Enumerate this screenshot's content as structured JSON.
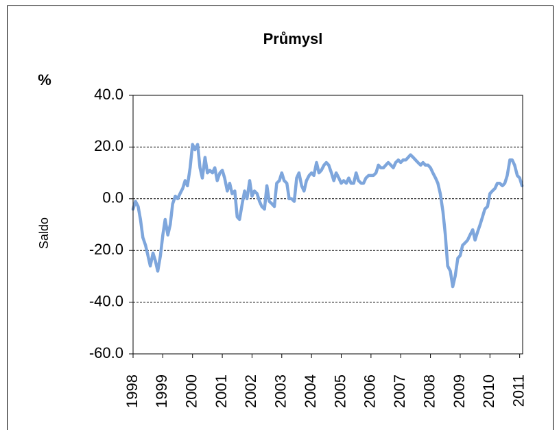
{
  "chart_data": {
    "type": "line",
    "title": "Průmysl",
    "unit_label": "%",
    "ylabel": "Saldo",
    "color": "#7ea6dc",
    "grid": true,
    "xlim": [
      1998,
      2011.1
    ],
    "xticks": [
      1998,
      1999,
      2000,
      2001,
      2002,
      2003,
      2004,
      2005,
      2006,
      2007,
      2008,
      2009,
      2010,
      2011
    ],
    "ylim": [
      -60,
      40
    ],
    "yticks": [
      {
        "value": 40,
        "label": "40.0"
      },
      {
        "value": 20,
        "label": "20.0"
      },
      {
        "value": 0,
        "label": "0.0"
      },
      {
        "value": -20,
        "label": "-20.0"
      },
      {
        "value": -40,
        "label": "-40.0"
      },
      {
        "value": -60,
        "label": "-60.0"
      }
    ],
    "x": [
      1998,
      1998.08,
      1998.17,
      1998.25,
      1998.33,
      1998.42,
      1998.5,
      1998.58,
      1998.67,
      1998.75,
      1998.83,
      1998.92,
      1999,
      1999.08,
      1999.17,
      1999.25,
      1999.33,
      1999.42,
      1999.5,
      1999.58,
      1999.67,
      1999.75,
      1999.83,
      1999.92,
      2000,
      2000.08,
      2000.17,
      2000.25,
      2000.33,
      2000.42,
      2000.5,
      2000.58,
      2000.67,
      2000.75,
      2000.83,
      2000.92,
      2001,
      2001.08,
      2001.17,
      2001.25,
      2001.33,
      2001.42,
      2001.5,
      2001.58,
      2001.67,
      2001.75,
      2001.83,
      2001.92,
      2002,
      2002.08,
      2002.17,
      2002.25,
      2002.33,
      2002.42,
      2002.5,
      2002.58,
      2002.67,
      2002.75,
      2002.83,
      2002.92,
      2003,
      2003.08,
      2003.17,
      2003.25,
      2003.33,
      2003.42,
      2003.5,
      2003.58,
      2003.67,
      2003.75,
      2003.83,
      2003.92,
      2004,
      2004.08,
      2004.17,
      2004.25,
      2004.33,
      2004.42,
      2004.5,
      2004.58,
      2004.67,
      2004.75,
      2004.83,
      2004.92,
      2005,
      2005.08,
      2005.17,
      2005.25,
      2005.33,
      2005.42,
      2005.5,
      2005.58,
      2005.67,
      2005.75,
      2005.83,
      2005.92,
      2006,
      2006.08,
      2006.17,
      2006.25,
      2006.33,
      2006.42,
      2006.5,
      2006.58,
      2006.67,
      2006.75,
      2006.83,
      2006.92,
      2007,
      2007.08,
      2007.17,
      2007.25,
      2007.33,
      2007.42,
      2007.5,
      2007.58,
      2007.67,
      2007.75,
      2007.83,
      2007.92,
      2008,
      2008.08,
      2008.17,
      2008.25,
      2008.33,
      2008.42,
      2008.5,
      2008.58,
      2008.67,
      2008.75,
      2008.83,
      2008.92,
      2009,
      2009.08,
      2009.17,
      2009.25,
      2009.33,
      2009.42,
      2009.5,
      2009.58,
      2009.67,
      2009.75,
      2009.83,
      2009.92,
      2010,
      2010.08,
      2010.17,
      2010.25,
      2010.33,
      2010.42,
      2010.5,
      2010.58,
      2010.67,
      2010.75,
      2010.83,
      2010.92,
      2011,
      2011.08
    ],
    "values": [
      -4,
      -1,
      -3,
      -8,
      -15,
      -18,
      -22,
      -26,
      -21,
      -24,
      -28,
      -22,
      -14,
      -8,
      -14,
      -10,
      -2,
      1,
      0,
      2,
      4,
      7,
      5,
      12,
      21,
      19,
      21,
      12,
      8,
      16,
      10,
      11,
      10,
      12,
      7,
      10,
      11,
      8,
      3,
      6,
      2,
      3,
      -7,
      -8,
      -2,
      3,
      0,
      7,
      1,
      3,
      2,
      -1,
      -3,
      -4,
      5,
      -1,
      -2,
      -3,
      6,
      7,
      10,
      7,
      6,
      0,
      0,
      -1,
      8,
      10,
      5,
      3,
      7,
      9,
      10,
      9,
      14,
      10,
      11,
      13,
      14,
      13,
      10,
      7,
      10,
      8,
      6,
      7,
      6,
      8,
      6,
      6,
      10,
      7,
      6,
      6,
      8,
      9,
      9,
      9,
      10,
      13,
      12,
      12,
      13,
      14,
      13,
      12,
      14,
      15,
      14,
      15,
      15,
      16,
      17,
      16,
      15,
      14,
      13,
      14,
      13,
      13,
      12,
      10,
      8,
      6,
      2,
      -5,
      -14,
      -26,
      -28,
      -34,
      -30,
      -23,
      -22,
      -18,
      -17,
      -16,
      -14,
      -12,
      -16,
      -13,
      -10,
      -7,
      -4,
      -3,
      2,
      3,
      4,
      6,
      6,
      5,
      6,
      9,
      15,
      15,
      13,
      9,
      8,
      5
    ]
  }
}
